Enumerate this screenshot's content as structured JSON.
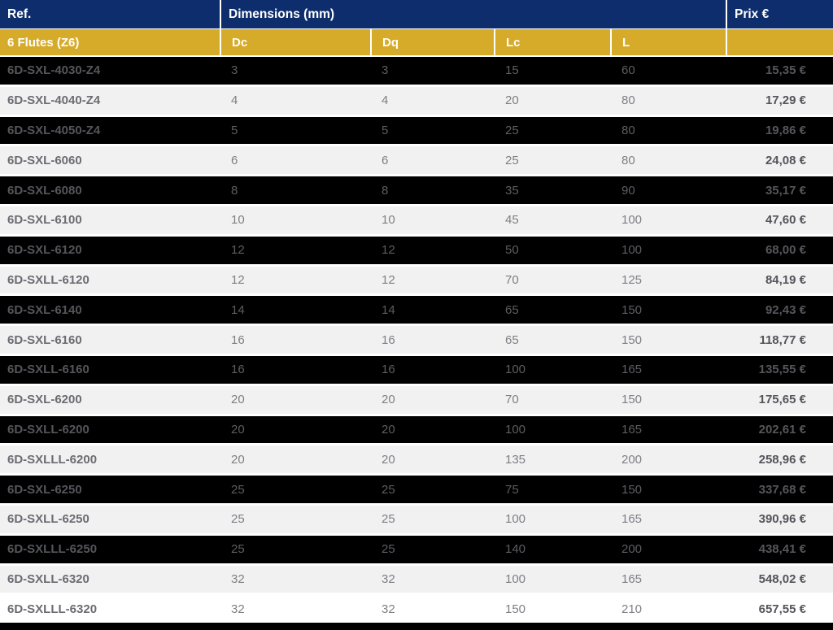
{
  "table": {
    "header": {
      "ref_label": "Ref.",
      "dimensions_label": "Dimensions (mm)",
      "price_label": "Prix €"
    },
    "subheader": {
      "group_label": "6 Flutes (Z6)",
      "cols": [
        "Dc",
        "Dq",
        "Lc",
        "L"
      ]
    },
    "rows": [
      {
        "ref": "6D-SXL-4030-Z4",
        "dc": "3",
        "dq": "3",
        "lc": "15",
        "l": "60",
        "price": "15,35 €",
        "shade": "dark"
      },
      {
        "ref": "6D-SXL-4040-Z4",
        "dc": "4",
        "dq": "4",
        "lc": "20",
        "l": "80",
        "price": "17,29 €",
        "shade": "light"
      },
      {
        "ref": "6D-SXL-4050-Z4",
        "dc": "5",
        "dq": "5",
        "lc": "25",
        "l": "80",
        "price": "19,86 €",
        "shade": "dark"
      },
      {
        "ref": "6D-SXL-6060",
        "dc": "6",
        "dq": "6",
        "lc": "25",
        "l": "80",
        "price": "24,08 €",
        "shade": "light"
      },
      {
        "ref": "6D-SXL-6080",
        "dc": "8",
        "dq": "8",
        "lc": "35",
        "l": "90",
        "price": "35,17 €",
        "shade": "dark"
      },
      {
        "ref": "6D-SXL-6100",
        "dc": "10",
        "dq": "10",
        "lc": "45",
        "l": "100",
        "price": "47,60 €",
        "shade": "light"
      },
      {
        "ref": "6D-SXL-6120",
        "dc": "12",
        "dq": "12",
        "lc": "50",
        "l": "100",
        "price": "68,00 €",
        "shade": "dark"
      },
      {
        "ref": "6D-SXLL-6120",
        "dc": "12",
        "dq": "12",
        "lc": "70",
        "l": "125",
        "price": "84,19 €",
        "shade": "light"
      },
      {
        "ref": "6D-SXL-6140",
        "dc": "14",
        "dq": "14",
        "lc": "65",
        "l": "150",
        "price": "92,43 €",
        "shade": "dark"
      },
      {
        "ref": "6D-SXL-6160",
        "dc": "16",
        "dq": "16",
        "lc": "65",
        "l": "150",
        "price": "118,77 €",
        "shade": "light"
      },
      {
        "ref": "6D-SXLL-6160",
        "dc": "16",
        "dq": "16",
        "lc": "100",
        "l": "165",
        "price": "135,55 €",
        "shade": "dark"
      },
      {
        "ref": "6D-SXL-6200",
        "dc": "20",
        "dq": "20",
        "lc": "70",
        "l": "150",
        "price": "175,65 €",
        "shade": "light"
      },
      {
        "ref": "6D-SXLL-6200",
        "dc": "20",
        "dq": "20",
        "lc": "100",
        "l": "165",
        "price": "202,61 €",
        "shade": "dark"
      },
      {
        "ref": "6D-SXLLL-6200",
        "dc": "20",
        "dq": "20",
        "lc": "135",
        "l": "200",
        "price": "258,96 €",
        "shade": "light"
      },
      {
        "ref": "6D-SXL-6250",
        "dc": "25",
        "dq": "25",
        "lc": "75",
        "l": "150",
        "price": "337,68 €",
        "shade": "dark"
      },
      {
        "ref": "6D-SXLL-6250",
        "dc": "25",
        "dq": "25",
        "lc": "100",
        "l": "165",
        "price": "390,96 €",
        "shade": "light"
      },
      {
        "ref": "6D-SXLLL-6250",
        "dc": "25",
        "dq": "25",
        "lc": "140",
        "l": "200",
        "price": "438,41 €",
        "shade": "dark"
      },
      {
        "ref": "6D-SXLL-6320",
        "dc": "32",
        "dq": "32",
        "lc": "100",
        "l": "165",
        "price": "548,02 €",
        "shade": "light"
      },
      {
        "ref": "6D-SXLLL-6320",
        "dc": "32",
        "dq": "32",
        "lc": "150",
        "l": "210",
        "price": "657,55 €",
        "shade": "white"
      }
    ]
  },
  "colors": {
    "header_bg": "#0e2d6d",
    "subheader_bg": "#d7ab2a",
    "dark_row_bg": "#000000",
    "light_row_bg": "#f1f1f2",
    "white_row_bg": "#ffffff"
  }
}
